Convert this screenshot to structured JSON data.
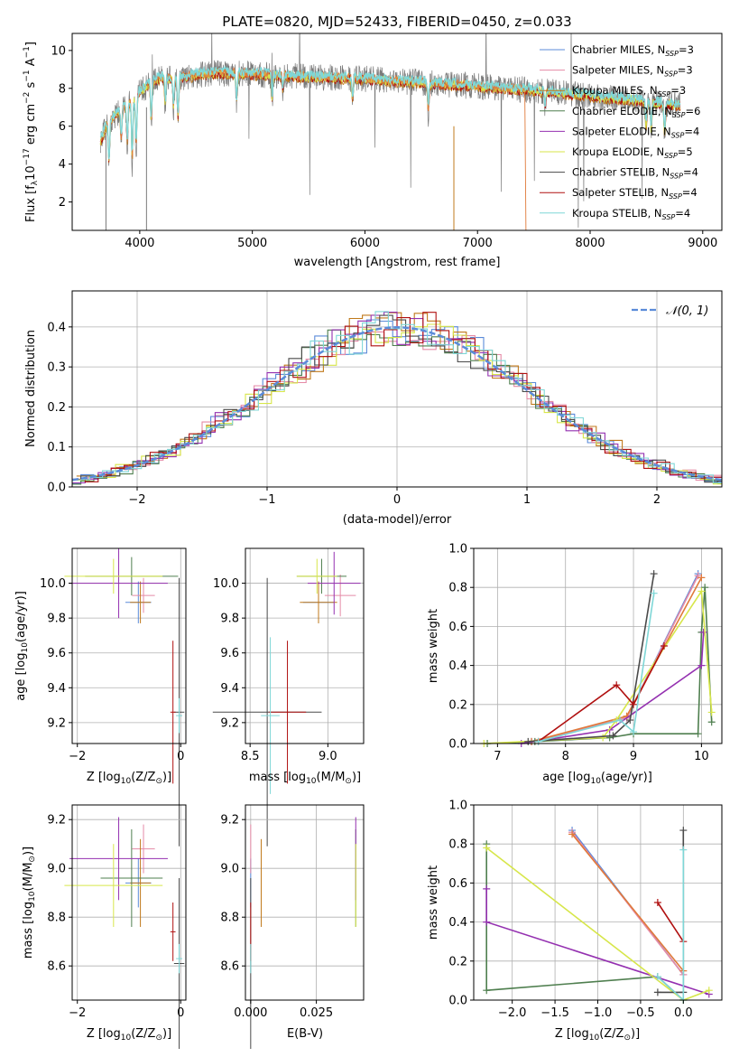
{
  "colors": {
    "chabrier_miles": "#5b8bd9",
    "salpeter_miles": "#e58aa6",
    "kroupa_miles": "#c0791b",
    "chabrier_elodie": "#4f7f4f",
    "salpeter_elodie": "#9430b0",
    "kroupa_elodie": "#d7e64a",
    "chabrier_stelib": "#4a4a4a",
    "salpeter_stelib": "#b01010",
    "kroupa_stelib": "#7fd7d7",
    "data_spectrum": "#7a7a7a",
    "normal_curve": "#5b8bd9",
    "model_orange": "#e07a3a"
  },
  "chart_data": [
    {
      "type": "line",
      "panel": "spectrum",
      "title": "PLATE=0820, MJD=52433, FIBERID=0450, z=0.033",
      "xlabel": "wavelength [Angstrom, rest frame]",
      "ylabel": "Flux [f",
      "ylabel_parts": [
        "Flux [f",
        "λ",
        "10",
        "−17",
        " erg cm",
        "−2",
        " s",
        "−1",
        " A",
        "−1",
        "]"
      ],
      "xlim": [
        3400,
        9170
      ],
      "ylim": [
        0.5,
        10.9
      ],
      "xticks": [
        4000,
        5000,
        6000,
        7000,
        8000,
        9000
      ],
      "yticks": [
        2,
        4,
        6,
        8,
        10
      ],
      "grid": false,
      "legend_position": "top-right",
      "continuum": {
        "x": [
          3650,
          3700,
          3800,
          3900,
          4000,
          4100,
          4200,
          4300,
          4500,
          4700,
          5000,
          5500,
          6000,
          6500,
          7000,
          7500,
          8000,
          8500,
          8800
        ],
        "y": [
          5.2,
          6.0,
          6.7,
          7.2,
          7.8,
          8.3,
          8.6,
          8.5,
          8.7,
          8.8,
          8.75,
          8.6,
          8.5,
          8.3,
          8.1,
          7.9,
          7.6,
          7.3,
          7.1
        ]
      },
      "absorption_lines": [
        {
          "x": 3727,
          "depth": 2.5
        },
        {
          "x": 3835,
          "depth": 1.8
        },
        {
          "x": 3889,
          "depth": 2.2
        },
        {
          "x": 3933,
          "depth": 3.5
        },
        {
          "x": 3968,
          "depth": 3.0
        },
        {
          "x": 4102,
          "depth": 2.2
        },
        {
          "x": 4227,
          "depth": 1.5
        },
        {
          "x": 4300,
          "depth": 1.6
        },
        {
          "x": 4340,
          "depth": 2.3
        },
        {
          "x": 4861,
          "depth": 1.5
        },
        {
          "x": 5175,
          "depth": 1.4
        },
        {
          "x": 5270,
          "depth": 0.8
        },
        {
          "x": 5890,
          "depth": 1.2
        },
        {
          "x": 6563,
          "depth": 1.6
        },
        {
          "x": 7600,
          "depth": 0.8
        },
        {
          "x": 8498,
          "depth": 1.5
        },
        {
          "x": 8542,
          "depth": 1.7
        },
        {
          "x": 8662,
          "depth": 1.8
        }
      ],
      "series": [
        {
          "name": "Chabrier MILES, N",
          "sub": "SSP",
          "suffix": "=3",
          "color_key": "chabrier_miles"
        },
        {
          "name": "Salpeter MILES, N",
          "sub": "SSP",
          "suffix": "=3",
          "color_key": "salpeter_miles"
        },
        {
          "name": "Kroupa MILES, N",
          "sub": "SSP",
          "suffix": "=3",
          "color_key": "kroupa_miles"
        },
        {
          "name": "Chabrier ELODIE, N",
          "sub": "SSP",
          "suffix": "=6",
          "color_key": "chabrier_elodie"
        },
        {
          "name": "Salpeter ELODIE, N",
          "sub": "SSP",
          "suffix": "=4",
          "color_key": "salpeter_elodie"
        },
        {
          "name": "Kroupa ELODIE, N",
          "sub": "SSP",
          "suffix": "=5",
          "color_key": "kroupa_elodie"
        },
        {
          "name": "Chabrier STELIB, N",
          "sub": "SSP",
          "suffix": "=4",
          "color_key": "chabrier_stelib"
        },
        {
          "name": "Salpeter STELIB, N",
          "sub": "SSP",
          "suffix": "=4",
          "color_key": "salpeter_stelib"
        },
        {
          "name": "Kroupa STELIB, N",
          "sub": "SSP",
          "suffix": "=4",
          "color_key": "kroupa_stelib"
        }
      ]
    },
    {
      "type": "line",
      "panel": "residuals",
      "xlabel": "(data-model)/error",
      "ylabel": "Normed distribution",
      "xlim": [
        -2.5,
        2.5
      ],
      "ylim": [
        0,
        0.49
      ],
      "xticks": [
        -2,
        -1,
        0,
        1,
        2
      ],
      "yticks": [
        0.0,
        0.1,
        0.2,
        0.3,
        0.4
      ],
      "grid": true,
      "legend_position": "top-right",
      "legend": "𝒩(0, 1)",
      "normal": {
        "mean": 0,
        "sigma": 1
      }
    },
    {
      "type": "scatter",
      "panel": "age_vs_z",
      "xlabel_prefix": "Z [log",
      "xlabel_sub": "10",
      "xlabel_suffix": "(Z/Z",
      "xlabel_end": ")]",
      "ylabel_prefix": "age  [log",
      "ylabel_sub": "10",
      "ylabel_suffix": "(age/yr)]",
      "xlim": [
        -2.1,
        0.1
      ],
      "ylim": [
        9.08,
        10.2
      ],
      "xticks": [
        -2,
        0
      ],
      "yticks": [
        9.2,
        9.4,
        9.6,
        9.8,
        10.0
      ],
      "points": [
        {
          "x": -0.82,
          "y": 9.89,
          "ex": 0.25,
          "ey": 0.12,
          "color_key": "chabrier_miles"
        },
        {
          "x": -0.72,
          "y": 9.93,
          "ex": 0.22,
          "ey": 0.1,
          "color_key": "salpeter_miles"
        },
        {
          "x": -0.78,
          "y": 9.89,
          "ex": 0.2,
          "ey": 0.12,
          "color_key": "kroupa_miles"
        },
        {
          "x": -0.95,
          "y": 10.04,
          "ex": 0.9,
          "ey": 0.11,
          "color_key": "chabrier_elodie"
        },
        {
          "x": -1.2,
          "y": 10.0,
          "ex": 0.95,
          "ey": 0.2,
          "color_key": "salpeter_elodie"
        },
        {
          "x": -1.3,
          "y": 10.04,
          "ex": 0.95,
          "ey": 0.1,
          "color_key": "kroupa_elodie"
        },
        {
          "x": -0.03,
          "y": 9.26,
          "ex": 0.1,
          "ey": 0.77,
          "color_key": "chabrier_stelib"
        },
        {
          "x": -0.15,
          "y": 9.26,
          "ex": 0.05,
          "ey": 0.41,
          "color_key": "salpeter_stelib"
        },
        {
          "x": -0.03,
          "y": 9.24,
          "ex": 0.06,
          "ey": 0.1,
          "color_key": "kroupa_stelib"
        }
      ]
    },
    {
      "type": "scatter",
      "panel": "age_vs_mass",
      "xlabel_prefix": "mass [log",
      "xlabel_sub": "10",
      "xlabel_suffix": "(M/M",
      "xlabel_end": ")]",
      "xlim": [
        8.47,
        9.23
      ],
      "ylim": [
        9.08,
        10.2
      ],
      "xticks": [
        8.5,
        9.0
      ],
      "yticks": [
        9.2,
        9.4,
        9.6,
        9.8,
        10.0
      ],
      "points": [
        {
          "x": 8.94,
          "y": 9.89,
          "ex": 0.1,
          "ey": 0.12,
          "color_key": "chabrier_miles"
        },
        {
          "x": 9.08,
          "y": 9.93,
          "ex": 0.1,
          "ey": 0.12,
          "color_key": "salpeter_miles"
        },
        {
          "x": 8.94,
          "y": 9.89,
          "ex": 0.12,
          "ey": 0.12,
          "color_key": "kroupa_miles"
        },
        {
          "x": 8.96,
          "y": 10.04,
          "ex": 0.16,
          "ey": 0.1,
          "color_key": "chabrier_elodie"
        },
        {
          "x": 9.04,
          "y": 10.0,
          "ex": 0.17,
          "ey": 0.18,
          "color_key": "salpeter_elodie"
        },
        {
          "x": 8.93,
          "y": 10.04,
          "ex": 0.13,
          "ey": 0.1,
          "color_key": "kroupa_elodie"
        },
        {
          "x": 8.61,
          "y": 9.26,
          "ex": 0.35,
          "ey": 0.77,
          "color_key": "chabrier_stelib"
        },
        {
          "x": 8.74,
          "y": 9.26,
          "ex": 0.12,
          "ey": 0.41,
          "color_key": "salpeter_stelib"
        },
        {
          "x": 8.63,
          "y": 9.24,
          "ex": 0.06,
          "ey": 0.45,
          "color_key": "kroupa_stelib"
        }
      ]
    },
    {
      "type": "line",
      "panel": "massweight_vs_age",
      "xlabel_prefix": "age  [log",
      "xlabel_sub": "10",
      "xlabel_suffix": "(age/yr)]",
      "ylabel": "mass weight",
      "xlim": [
        6.65,
        10.3
      ],
      "ylim": [
        0.0,
        1.0
      ],
      "xticks": [
        7,
        8,
        9,
        10
      ],
      "yticks": [
        0.0,
        0.2,
        0.4,
        0.6,
        0.8,
        1.0
      ],
      "grid": true,
      "series": [
        {
          "color_key": "chabrier_miles",
          "x": [
            7.5,
            8.9,
            9.95
          ],
          "y": [
            0.01,
            0.13,
            0.87
          ]
        },
        {
          "color_key": "salpeter_miles",
          "x": [
            7.5,
            8.9,
            9.95
          ],
          "y": [
            0.01,
            0.13,
            0.86
          ]
        },
        {
          "color_key": "model_orange",
          "x": [
            7.5,
            8.9,
            10.0
          ],
          "y": [
            0.01,
            0.14,
            0.85
          ]
        },
        {
          "color_key": "chabrier_elodie",
          "x": [
            6.85,
            7.55,
            8.65,
            9.0,
            9.95,
            10.0,
            10.05,
            10.15
          ],
          "y": [
            0.0,
            0.01,
            0.03,
            0.05,
            0.05,
            0.57,
            0.8,
            0.11
          ]
        },
        {
          "color_key": "salpeter_elodie",
          "x": [
            7.35,
            8.65,
            10.0,
            10.03
          ],
          "y": [
            0.0,
            0.07,
            0.4,
            0.57
          ]
        },
        {
          "color_key": "kroupa_elodie",
          "x": [
            6.8,
            8.55,
            8.75,
            10.0,
            10.15
          ],
          "y": [
            0.0,
            0.03,
            0.12,
            0.78,
            0.16
          ]
        },
        {
          "color_key": "chabrier_stelib",
          "x": [
            7.45,
            8.7,
            8.95,
            9.3
          ],
          "y": [
            0.01,
            0.04,
            0.12,
            0.87
          ]
        },
        {
          "color_key": "salpeter_stelib",
          "x": [
            7.6,
            8.75,
            9.0,
            9.45
          ],
          "y": [
            0.01,
            0.3,
            0.2,
            0.5
          ]
        },
        {
          "color_key": "kroupa_stelib",
          "x": [
            7.6,
            8.8,
            9.0,
            9.3
          ],
          "y": [
            0.01,
            0.12,
            0.06,
            0.77
          ]
        }
      ]
    },
    {
      "type": "scatter",
      "panel": "mass_vs_z",
      "xlabel_prefix": "Z [log",
      "xlabel_sub": "10",
      "xlabel_suffix": "(Z/Z",
      "xlabel_end": ")]",
      "ylabel_prefix": "mass [log",
      "ylabel_sub": "10",
      "ylabel_suffix": "(M/M",
      "ylabel_end": ")]",
      "xlim": [
        -2.1,
        0.1
      ],
      "ylim": [
        8.46,
        9.26
      ],
      "xticks": [
        -2,
        0
      ],
      "yticks": [
        8.6,
        8.8,
        9.0,
        9.2
      ],
      "points": [
        {
          "x": -0.82,
          "y": 8.94,
          "ex": 0.25,
          "ey": 0.1,
          "color_key": "chabrier_miles"
        },
        {
          "x": -0.72,
          "y": 9.08,
          "ex": 0.22,
          "ey": 0.1,
          "color_key": "salpeter_miles"
        },
        {
          "x": -0.78,
          "y": 8.94,
          "ex": 0.2,
          "ey": 0.18,
          "color_key": "kroupa_miles"
        },
        {
          "x": -0.95,
          "y": 8.96,
          "ex": 0.6,
          "ey": 0.2,
          "color_key": "chabrier_elodie"
        },
        {
          "x": -1.2,
          "y": 9.04,
          "ex": 0.95,
          "ey": 0.17,
          "color_key": "salpeter_elodie"
        },
        {
          "x": -1.3,
          "y": 8.93,
          "ex": 0.95,
          "ey": 0.17,
          "color_key": "kroupa_elodie"
        },
        {
          "x": -0.03,
          "y": 8.61,
          "ex": 0.1,
          "ey": 0.35,
          "color_key": "chabrier_stelib"
        },
        {
          "x": -0.15,
          "y": 8.74,
          "ex": 0.05,
          "ey": 0.12,
          "color_key": "salpeter_stelib"
        },
        {
          "x": -0.03,
          "y": 8.63,
          "ex": 0.06,
          "ey": 0.06,
          "color_key": "kroupa_stelib"
        }
      ]
    },
    {
      "type": "scatter",
      "panel": "mass_vs_ebv",
      "xlabel": "E(B-V)",
      "xlim": [
        -0.002,
        0.043
      ],
      "ylim": [
        8.46,
        9.26
      ],
      "xticks": [
        0.0,
        0.025
      ],
      "xtick_labels": [
        "0.000",
        "0.025"
      ],
      "yticks": [
        8.6,
        8.8,
        9.0,
        9.2
      ],
      "points": [
        {
          "x": 0.0,
          "y": 8.94,
          "ey": 0.1,
          "color_key": "chabrier_miles"
        },
        {
          "x": 0.0,
          "y": 9.08,
          "ey": 0.1,
          "color_key": "salpeter_miles"
        },
        {
          "x": 0.004,
          "y": 8.94,
          "ey": 0.18,
          "color_key": "kroupa_miles"
        },
        {
          "x": 0.04,
          "y": 8.96,
          "ey": 0.2,
          "color_key": "chabrier_elodie"
        },
        {
          "x": 0.04,
          "y": 9.04,
          "ey": 0.17,
          "color_key": "salpeter_elodie"
        },
        {
          "x": 0.04,
          "y": 8.93,
          "ey": 0.17,
          "color_key": "kroupa_elodie"
        },
        {
          "x": 0.0,
          "y": 8.61,
          "ey": 0.35,
          "color_key": "chabrier_stelib"
        },
        {
          "x": 0.0,
          "y": 8.74,
          "ey": 0.12,
          "color_key": "salpeter_stelib"
        },
        {
          "x": 0.0,
          "y": 8.63,
          "ey": 0.06,
          "color_key": "kroupa_stelib"
        }
      ]
    },
    {
      "type": "line",
      "panel": "massweight_vs_z",
      "xlabel_prefix": "Z [log",
      "xlabel_sub": "10",
      "xlabel_suffix": "(Z/Z",
      "xlabel_end": ")]",
      "ylabel": "mass weight",
      "xlim": [
        -2.45,
        0.45
      ],
      "ylim": [
        0.0,
        1.0
      ],
      "xticks": [
        -2.0,
        -1.5,
        -1.0,
        -0.5,
        0.0
      ],
      "xtick_labels": [
        "−2.0",
        "−1.5",
        "−1.0",
        "−0.5",
        "0.0"
      ],
      "yticks": [
        0.0,
        0.2,
        0.4,
        0.6,
        0.8,
        1.0
      ],
      "grid": true,
      "series": [
        {
          "color_key": "chabrier_miles",
          "x": [
            -1.3,
            0.0
          ],
          "y": [
            0.87,
            0.13
          ]
        },
        {
          "color_key": "salpeter_miles",
          "x": [
            -1.3,
            0.0
          ],
          "y": [
            0.86,
            0.13
          ]
        },
        {
          "color_key": "model_orange",
          "x": [
            -1.3,
            0.0
          ],
          "y": [
            0.85,
            0.15
          ]
        },
        {
          "color_key": "chabrier_elodie",
          "x": [
            -2.3,
            -2.3,
            -0.3,
            0.0
          ],
          "y": [
            0.8,
            0.05,
            0.12,
            0.0
          ]
        },
        {
          "color_key": "salpeter_elodie",
          "x": [
            -2.3,
            -2.3,
            0.3
          ],
          "y": [
            0.57,
            0.4,
            0.03
          ]
        },
        {
          "color_key": "kroupa_elodie",
          "x": [
            -2.3,
            0.0,
            0.3
          ],
          "y": [
            0.78,
            0.0,
            0.05
          ]
        },
        {
          "color_key": "chabrier_stelib",
          "x": [
            -0.3,
            0.0,
            0.0
          ],
          "y": [
            0.04,
            0.04,
            0.87
          ]
        },
        {
          "color_key": "salpeter_stelib",
          "x": [
            -0.3,
            0.0
          ],
          "y": [
            0.5,
            0.3
          ]
        },
        {
          "color_key": "kroupa_stelib",
          "x": [
            -0.3,
            0.0,
            0.0
          ],
          "y": [
            0.12,
            0.0,
            0.77
          ]
        }
      ]
    }
  ]
}
